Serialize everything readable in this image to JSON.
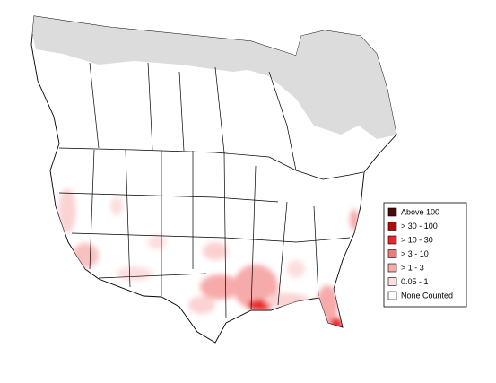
{
  "legend": {
    "items": [
      {
        "label": "Above 100",
        "color": "#4a0a0a"
      },
      {
        "label": "> 30 - 100",
        "color": "#b00a0a"
      },
      {
        "label": "> 10 - 30",
        "color": "#e8262b"
      },
      {
        "label": "> 3 - 10",
        "color": "#f07a7a"
      },
      {
        "label": "> 1 - 3",
        "color": "#f7aaaa"
      },
      {
        "label": "0.05 - 1",
        "color": "#fcdede"
      },
      {
        "label": "None Counted",
        "color": "#ffffff"
      }
    ]
  }
}
